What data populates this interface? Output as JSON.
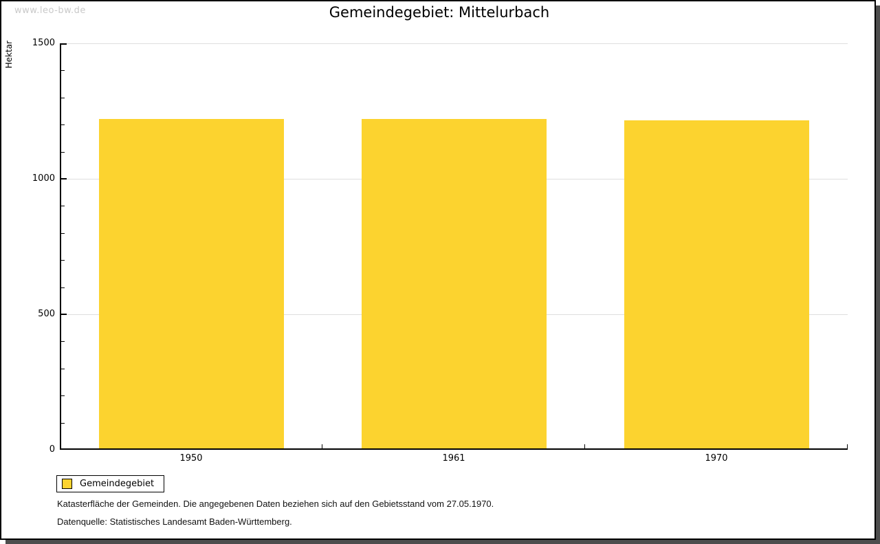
{
  "page": {
    "watermark": "www.leo-bw.de"
  },
  "chart_data": {
    "type": "bar",
    "title": "Gemeindegebiet: Mittelurbach",
    "ylabel": "Hektar",
    "xlabel": "",
    "categories": [
      "1950",
      "1961",
      "1970"
    ],
    "series": [
      {
        "name": "Gemeindegebiet",
        "color": "#FCD32F",
        "values": [
          1220,
          1220,
          1215
        ]
      }
    ],
    "ylim": [
      0,
      1500
    ],
    "yticks": [
      0,
      500,
      1000,
      1500
    ],
    "minor_tick_step": 100,
    "grid": true,
    "legend_position": "bottom-left"
  },
  "legend": {
    "entry_label": "Gemeindegebiet"
  },
  "notes": {
    "line1": "Katasterfläche der Gemeinden. Die angegebenen Daten beziehen sich auf den Gebietsstand vom 27.05.1970.",
    "line2": "Datenquelle: Statistisches Landesamt Baden-Württemberg."
  },
  "colors": {
    "bar": "#FCD32F",
    "grid": "#DEDEDE",
    "axis": "#000000",
    "watermark": "#C9C9C9",
    "shadow": "#4D4D4D"
  }
}
